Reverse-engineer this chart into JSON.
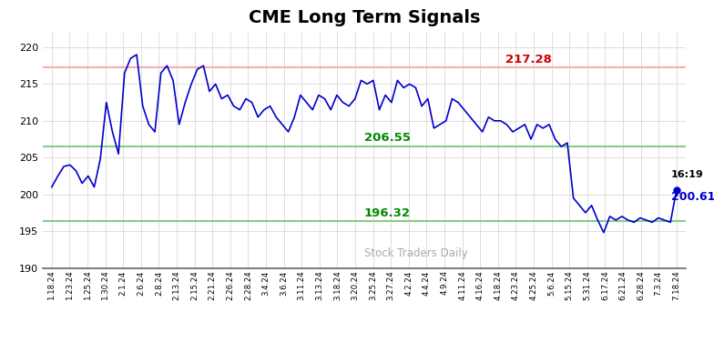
{
  "title": "CME Long Term Signals",
  "title_fontsize": 14,
  "background_color": "#ffffff",
  "line_color": "#0000cc",
  "ylim": [
    190,
    222
  ],
  "yticks": [
    190,
    195,
    200,
    205,
    210,
    215,
    220
  ],
  "hline_red": 217.28,
  "hline_green1": 206.55,
  "hline_green2": 196.32,
  "hline_red_color": "#ffaaaa",
  "hline_green_color": "#88cc88",
  "label_red_color": "#cc0000",
  "label_green_color": "#008800",
  "label_red_value": "217.28",
  "label_green1_value": "206.55",
  "label_green2_value": "196.32",
  "watermark": "Stock Traders Daily",
  "watermark_color": "#aaaaaa",
  "last_label_time": "16:19",
  "last_label_value": "200.61",
  "last_dot_color": "#0000cc",
  "x_labels": [
    "1.18.24",
    "1.23.24",
    "1.25.24",
    "1.30.24",
    "2.1.24",
    "2.6.24",
    "2.8.24",
    "2.13.24",
    "2.15.24",
    "2.21.24",
    "2.26.24",
    "2.28.24",
    "3.4.24",
    "3.6.24",
    "3.11.24",
    "3.13.24",
    "3.18.24",
    "3.20.24",
    "3.25.24",
    "3.27.24",
    "4.2.24",
    "4.4.24",
    "4.9.24",
    "4.11.24",
    "4.16.24",
    "4.18.24",
    "4.23.24",
    "4.25.24",
    "5.6.24",
    "5.15.24",
    "5.31.24",
    "6.17.24",
    "6.21.24",
    "6.28.24",
    "7.3.24",
    "7.18.24"
  ],
  "y_values": [
    201.0,
    202.5,
    203.8,
    204.0,
    203.2,
    201.5,
    202.5,
    201.0,
    204.8,
    212.5,
    208.5,
    205.5,
    216.5,
    218.5,
    219.0,
    212.0,
    209.5,
    208.5,
    216.5,
    217.5,
    215.5,
    209.5,
    212.5,
    215.0,
    217.0,
    217.5,
    214.0,
    215.0,
    213.0,
    213.5,
    212.0,
    211.5,
    213.0,
    212.5,
    210.5,
    211.5,
    212.0,
    210.5,
    209.5,
    208.5,
    210.5,
    213.5,
    212.5,
    211.5,
    213.5,
    213.0,
    211.5,
    213.5,
    212.5,
    212.0,
    213.0,
    215.5,
    215.0,
    215.5,
    211.5,
    213.5,
    212.5,
    215.5,
    214.5,
    215.0,
    214.5,
    212.0,
    213.0,
    209.0,
    209.5,
    210.0,
    213.0,
    212.5,
    211.5,
    210.5,
    209.5,
    208.5,
    210.5,
    210.0,
    210.0,
    209.5,
    208.5,
    209.0,
    209.5,
    207.5,
    209.5,
    209.0,
    209.5,
    207.5,
    206.5,
    207.0,
    199.5,
    198.5,
    197.5,
    198.5,
    196.5,
    194.8,
    197.0,
    196.5,
    197.0,
    196.5,
    196.2,
    196.8,
    196.5,
    196.2,
    196.8,
    196.5,
    196.2,
    200.61
  ]
}
